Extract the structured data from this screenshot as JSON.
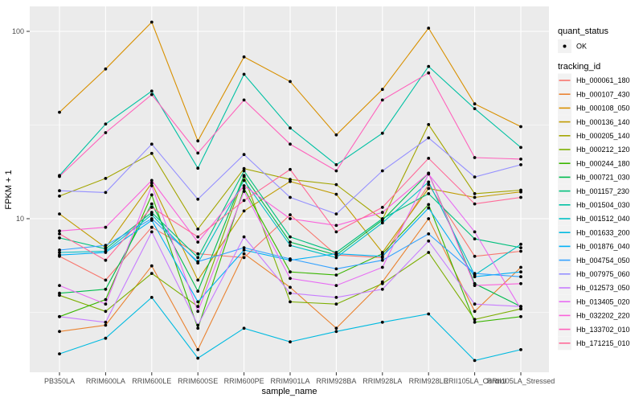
{
  "figure": {
    "background": "#ffffff",
    "panel_background": "#ebebeb",
    "grid_color": "#ffffff",
    "tick_mark_color": "#333333",
    "axis_text_color": "#4d4d4d",
    "point_color": "#000000"
  },
  "axes": {
    "x_label": "sample_name",
    "y_label": "FPKM + 1",
    "y_scale": "log10",
    "y_ticks": [
      {
        "label": "100",
        "value": 100
      },
      {
        "label": "10",
        "value": 10
      }
    ],
    "y_minor_values": [
      31.6228,
      3.16228
    ]
  },
  "legend": {
    "quant_status": {
      "title": "quant_status",
      "items": [
        {
          "label": "OK",
          "marker": "point",
          "color": "#000000"
        }
      ]
    },
    "tracking_id": {
      "title": "tracking_id"
    }
  },
  "chart_data": {
    "type": "line",
    "title": "",
    "xlabel": "sample_name",
    "ylabel": "FPKM + 1",
    "y_scale": "log10",
    "ylim": [
      1.5,
      132
    ],
    "grid": true,
    "legend_position": "right",
    "marker": {
      "shape": "circle",
      "color": "#000000",
      "radius": 1.9
    },
    "x_categories": [
      "PB350LA",
      "RRIM600LA",
      "RRIM600LE",
      "RRIM600SE",
      "RRIM600PE",
      "RRIM901LA",
      "RRIM928BA",
      "RRIM928LA",
      "RRIM928LE",
      "RRII105LA_Control",
      "RRII105LA_Stressed"
    ],
    "series": [
      {
        "name": "Hb_000061_180",
        "color": "#F8766D",
        "values": [
          6.3,
          4.7,
          9.0,
          6.5,
          6.2,
          10.5,
          6.4,
          6.2,
          15.2,
          6.3,
          6.7
        ]
      },
      {
        "name": "Hb_000107_430",
        "color": "#EA8331",
        "values": [
          2.5,
          2.7,
          5.6,
          2.0,
          6.5,
          4.3,
          2.6,
          4.6,
          10.0,
          3.2,
          5.5
        ]
      },
      {
        "name": "Hb_000108_050",
        "color": "#D89000",
        "values": [
          37,
          63,
          112,
          26,
          73,
          54,
          28,
          49,
          104,
          41,
          31
        ]
      },
      {
        "name": "Hb_000136_140",
        "color": "#C09B00",
        "values": [
          10.6,
          7.0,
          15.5,
          4.7,
          11.0,
          15.8,
          13.5,
          6.6,
          14.5,
          13.0,
          13.9
        ]
      },
      {
        "name": "Hb_000205_140",
        "color": "#A3A500",
        "values": [
          13.2,
          16.4,
          22.3,
          8.8,
          18.5,
          16.2,
          15.2,
          9.9,
          31.8,
          13.6,
          14.2
        ]
      },
      {
        "name": "Hb_000212_120",
        "color": "#7CAE00",
        "values": [
          3.9,
          3.2,
          5.1,
          3.4,
          16.8,
          3.6,
          3.5,
          4.5,
          6.6,
          2.9,
          3.3
        ]
      },
      {
        "name": "Hb_000244_180",
        "color": "#39B600",
        "values": [
          3.0,
          3.7,
          13.4,
          2.6,
          14.5,
          5.2,
          5.0,
          6.5,
          11.9,
          2.8,
          3.0
        ]
      },
      {
        "name": "Hb_000721_030",
        "color": "#00BB4E",
        "values": [
          4.0,
          4.2,
          12.0,
          4.1,
          17.0,
          7.5,
          6.4,
          9.8,
          17.5,
          4.5,
          3.4
        ]
      },
      {
        "name": "Hb_001157_230",
        "color": "#00BF7D",
        "values": [
          7.9,
          6.9,
          10.8,
          6.2,
          18.0,
          8.0,
          6.6,
          10.0,
          13.6,
          7.8,
          7.0
        ]
      },
      {
        "name": "Hb_001504_030",
        "color": "#00C1A3",
        "values": [
          17.0,
          32.0,
          48.0,
          18.6,
          59.0,
          30.5,
          19.4,
          28.6,
          65.0,
          38.7,
          24.0
        ]
      },
      {
        "name": "Hb_001512_040",
        "color": "#00BFC4",
        "values": [
          6.6,
          6.7,
          10.5,
          5.8,
          16.0,
          7.2,
          6.2,
          9.5,
          15.7,
          5.0,
          7.3
        ]
      },
      {
        "name": "Hb_001633_200",
        "color": "#00BAE0",
        "values": [
          1.9,
          2.3,
          3.8,
          1.8,
          2.6,
          2.2,
          2.5,
          2.8,
          3.1,
          1.75,
          2.0
        ]
      },
      {
        "name": "Hb_001876_040",
        "color": "#00B0F6",
        "values": [
          6.4,
          6.6,
          9.8,
          3.6,
          6.8,
          6.0,
          6.5,
          6.3,
          11.4,
          4.9,
          5.2
        ]
      },
      {
        "name": "Hb_004754_050",
        "color": "#35A2FF",
        "values": [
          6.8,
          7.2,
          10.0,
          5.9,
          7.0,
          6.1,
          5.4,
          6.0,
          8.3,
          5.1,
          4.9
        ]
      },
      {
        "name": "Hb_007975_060",
        "color": "#9590FF",
        "values": [
          14.1,
          13.8,
          25.0,
          12.7,
          22.0,
          13.0,
          10.6,
          18.0,
          27.0,
          16.7,
          19.4
        ]
      },
      {
        "name": "Hb_012573_050",
        "color": "#C77CFF",
        "values": [
          3.0,
          2.8,
          8.5,
          2.7,
          8.0,
          4.0,
          3.8,
          4.2,
          7.6,
          3.5,
          3.4
        ]
      },
      {
        "name": "Hb_013405_020",
        "color": "#E76BF3",
        "values": [
          4.4,
          3.5,
          15.0,
          3.2,
          14.0,
          4.8,
          4.4,
          5.5,
          17.3,
          8.5,
          3.3
        ]
      },
      {
        "name": "Hb_032202_220",
        "color": "#FA62DB",
        "values": [
          8.6,
          9.0,
          16.0,
          7.5,
          15.0,
          10.0,
          9.2,
          10.8,
          17.5,
          4.4,
          4.5
        ]
      },
      {
        "name": "Hb_133702_010",
        "color": "#FF62BC",
        "values": [
          16.8,
          28.8,
          46.0,
          22.4,
          43.0,
          25.0,
          18.0,
          43.0,
          60.0,
          21.2,
          20.8
        ]
      },
      {
        "name": "Hb_171215_010",
        "color": "#FF6A98",
        "values": [
          8.3,
          6.0,
          11.5,
          8.0,
          12.5,
          18.3,
          8.5,
          11.5,
          21.0,
          12.0,
          13.0
        ]
      }
    ]
  }
}
